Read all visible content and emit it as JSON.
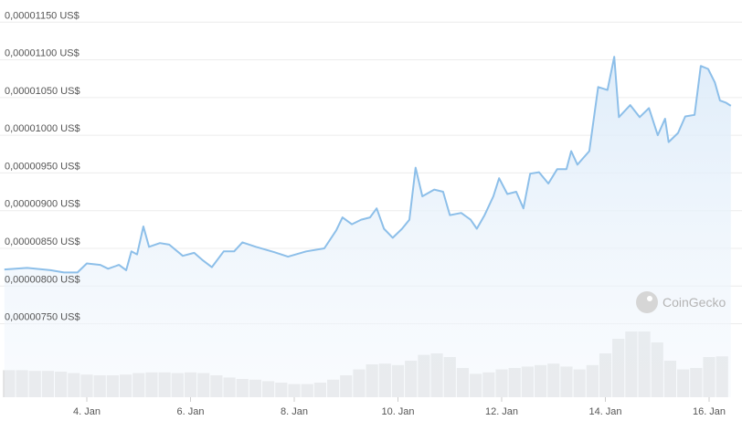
{
  "chart_data": {
    "type": "line",
    "watermark": "CoinGecko",
    "grid": true,
    "xlim": [
      2.326,
      16.458
    ],
    "ylim": [
      6.55e-06,
      1.16e-05
    ],
    "xticks": [
      {
        "value": 4,
        "label": "4. Jan"
      },
      {
        "value": 6,
        "label": "6. Jan"
      },
      {
        "value": 8,
        "label": "8. Jan"
      },
      {
        "value": 10,
        "label": "10. Jan"
      },
      {
        "value": 12,
        "label": "12. Jan"
      },
      {
        "value": 14,
        "label": "14. Jan"
      },
      {
        "value": 16,
        "label": "16. Jan"
      }
    ],
    "yticks": [
      {
        "value": 7.5e-06,
        "label": "0,00000750 US$"
      },
      {
        "value": 8e-06,
        "label": "0,00000800 US$"
      },
      {
        "value": 8.5e-06,
        "label": "0,00000850 US$"
      },
      {
        "value": 9e-06,
        "label": "0,00000900 US$"
      },
      {
        "value": 9.5e-06,
        "label": "0,00000950 US$"
      },
      {
        "value": 1e-05,
        "label": "0,00001000 US$"
      },
      {
        "value": 1.05e-05,
        "label": "0,00001050 US$"
      },
      {
        "value": 1.1e-05,
        "label": "0,00001100 US$"
      },
      {
        "value": 1.15e-05,
        "label": "0,00001150 US$"
      }
    ],
    "series": [
      {
        "color": "#8dbfe9",
        "x": [
          2.41,
          2.85,
          3.3,
          3.56,
          3.82,
          4.0,
          4.26,
          4.41,
          4.62,
          4.76,
          4.86,
          4.97,
          5.09,
          5.2,
          5.41,
          5.59,
          5.85,
          6.07,
          6.24,
          6.41,
          6.64,
          6.84,
          7.0,
          7.26,
          7.61,
          7.88,
          8.23,
          8.58,
          8.81,
          8.93,
          9.11,
          9.29,
          9.46,
          9.59,
          9.73,
          9.9,
          10.08,
          10.22,
          10.34,
          10.47,
          10.7,
          10.87,
          11.0,
          11.22,
          11.4,
          11.52,
          11.67,
          11.84,
          11.95,
          12.11,
          12.28,
          12.42,
          12.55,
          12.72,
          12.9,
          13.07,
          13.25,
          13.34,
          13.46,
          13.69,
          13.86,
          14.04,
          14.17,
          14.26,
          14.48,
          14.66,
          14.84,
          15.01,
          15.15,
          15.22,
          15.4,
          15.54,
          15.72,
          15.84,
          15.98,
          16.11,
          16.21,
          16.33,
          16.42
        ],
        "values": [
          8.22e-06,
          8.24e-06,
          8.21e-06,
          8.18e-06,
          8.18e-06,
          8.3e-06,
          8.28e-06,
          8.23e-06,
          8.28e-06,
          8.21e-06,
          8.46e-06,
          8.42e-06,
          8.79e-06,
          8.52e-06,
          8.57e-06,
          8.55e-06,
          8.4e-06,
          8.44e-06,
          8.34e-06,
          8.25e-06,
          8.46e-06,
          8.46e-06,
          8.58e-06,
          8.52e-06,
          8.45e-06,
          8.39e-06,
          8.46e-06,
          8.5e-06,
          8.74e-06,
          8.91e-06,
          8.82e-06,
          8.88e-06,
          8.91e-06,
          9.03e-06,
          8.76e-06,
          8.64e-06,
          8.76e-06,
          8.88e-06,
          9.57e-06,
          9.19e-06,
          9.28e-06,
          9.25e-06,
          8.94e-06,
          8.97e-06,
          8.88e-06,
          8.76e-06,
          8.94e-06,
          9.19e-06,
          9.43e-06,
          9.22e-06,
          9.25e-06,
          9.03e-06,
          9.49e-06,
          9.51e-06,
          9.36e-06,
          9.55e-06,
          9.55e-06,
          9.79e-06,
          9.61e-06,
          9.79e-06,
          1.064e-05,
          1.06e-05,
          1.104e-05,
          1.024e-05,
          1.04e-05,
          1.024e-05,
          1.036e-05,
          1e-05,
          1.022e-05,
          9.91e-06,
          1.003e-05,
          1.025e-05,
          1.027e-05,
          1.092e-05,
          1.088e-05,
          1.07e-05,
          1.046e-05,
          1.043e-05,
          1.039e-05
        ]
      }
    ],
    "volume": {
      "color": "#dedede",
      "ylim": [
        0,
        100
      ],
      "x": [
        2.5,
        2.75,
        3,
        3.25,
        3.5,
        3.75,
        4,
        4.25,
        4.5,
        4.75,
        5,
        5.25,
        5.5,
        5.75,
        6,
        6.25,
        6.5,
        6.75,
        7,
        7.25,
        7.5,
        7.75,
        8,
        8.25,
        8.5,
        8.75,
        9,
        9.25,
        9.5,
        9.75,
        10,
        10.25,
        10.5,
        10.75,
        11,
        11.25,
        11.5,
        11.75,
        12,
        12.25,
        12.5,
        12.75,
        13,
        13.25,
        13.5,
        13.75,
        14,
        14.25,
        14.5,
        14.75,
        15,
        15.25,
        15.5,
        15.75,
        16,
        16.25
      ],
      "values": [
        37,
        37,
        36,
        36,
        35,
        33,
        31,
        30,
        30,
        31,
        33,
        34,
        34,
        33,
        34,
        33,
        30,
        27,
        25,
        24,
        22,
        20,
        18,
        18,
        20,
        24,
        30,
        38,
        45,
        46,
        44,
        50,
        58,
        60,
        55,
        40,
        32,
        34,
        38,
        40,
        42,
        44,
        46,
        42,
        38,
        44,
        60,
        80,
        90,
        90,
        75,
        50,
        38,
        40,
        55,
        56
      ]
    }
  }
}
